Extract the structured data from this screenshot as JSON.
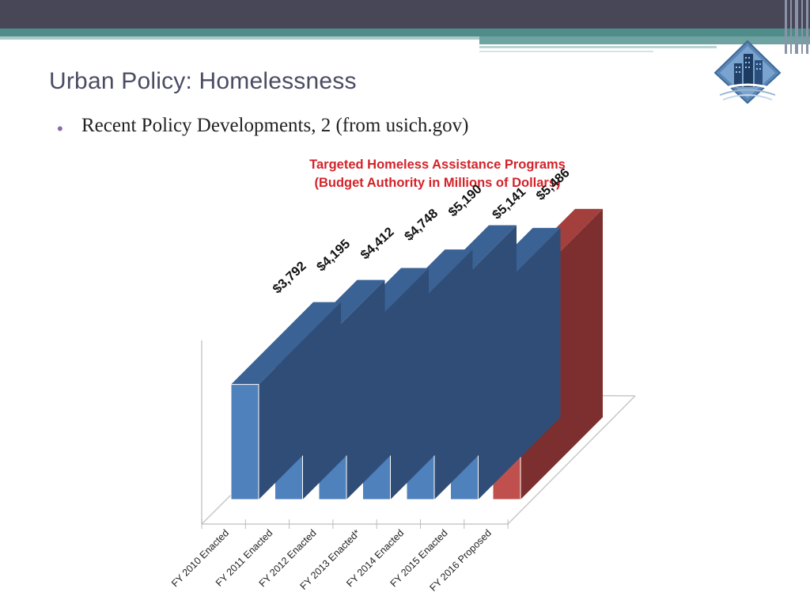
{
  "slide": {
    "title": "Urban Policy: Homelessness",
    "bullet": "Recent Policy Developments, 2 (from usich.gov)"
  },
  "colors": {
    "bar_front": "#4f81bd",
    "bar_side": "#2f4d77",
    "bar_top": "#3a6294",
    "highlight_front": "#c0504d",
    "highlight_side": "#7c2f2e",
    "highlight_top": "#a3403d",
    "title_red": "#d3232a",
    "slide_title": "#4a4c63"
  },
  "chart_data": {
    "type": "bar",
    "style": "3d",
    "title": "Targeted Homeless Assistance Programs",
    "subtitle": "(Budget Authority in Millions of Dollars)",
    "categories": [
      "FY 2010 Enacted",
      "FY 2011 Enacted",
      "FY 2012 Enacted",
      "FY 2013 Enacted*",
      "FY 2014 Enacted",
      "FY 2015 Enacted",
      "FY 2016 Proposed"
    ],
    "values": [
      3792,
      4195,
      4412,
      4748,
      5190,
      5141,
      5486
    ],
    "labels": [
      "$3,792",
      "$4,195",
      "$4,412",
      "$4,748",
      "$5,190",
      "$5,141",
      "$5,486"
    ],
    "highlight_index": 6,
    "grid": false,
    "legend": "none"
  }
}
